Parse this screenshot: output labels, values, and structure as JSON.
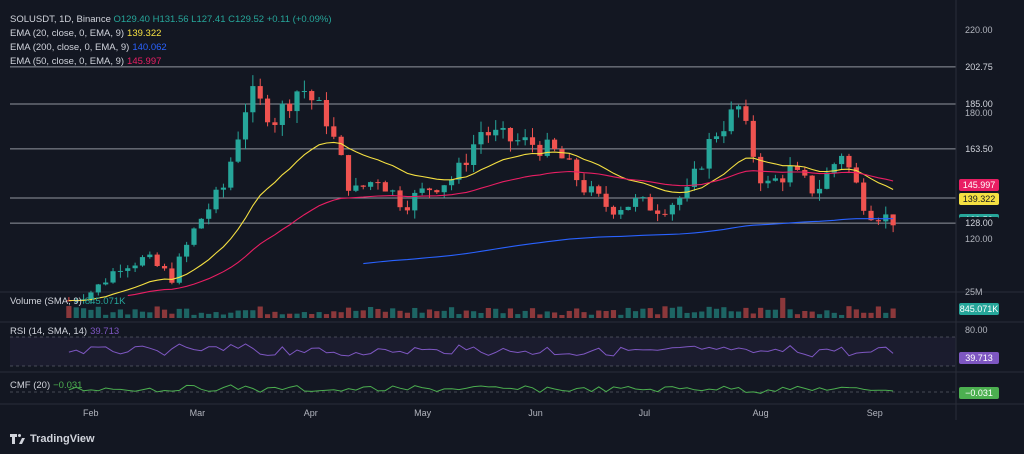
{
  "header": {
    "symbol": "SOLUSDT, 1D, Binance",
    "o": "O129.40",
    "h": "H131.56",
    "l": "L127.41",
    "c": "C129.52",
    "chg": "+0.11 (+0.09%)"
  },
  "indicators": [
    {
      "label": "EMA (20, close, 0, EMA, 9)",
      "value": "139.322",
      "color": "#f5e042"
    },
    {
      "label": "EMA (200, close, 0, EMA, 9)",
      "value": "140.062",
      "color": "#2962ff"
    },
    {
      "label": "EMA (50, close, 0, EMA, 9)",
      "value": "145.997",
      "color": "#e91e63"
    }
  ],
  "volume_legend": {
    "label": "Volume (SMA, 9)",
    "value": "845.071K"
  },
  "rsi_legend": {
    "label": "RSI (14, SMA, 14)",
    "value": "39.713"
  },
  "cmf_legend": {
    "label": "CMF (20)",
    "value": "−0.031"
  },
  "branding": "TradingView",
  "colors": {
    "up": "#26a69a",
    "down": "#ef5350",
    "bg": "#131722",
    "rsi": "#7e57c2",
    "cmf": "#4caf50"
  },
  "chart_data": {
    "type": "candlestick",
    "x_months": [
      "Feb",
      "Mar",
      "Apr",
      "May",
      "Jun",
      "Jul",
      "Aug",
      "Sep"
    ],
    "y_ticks": [
      "220.00",
      "180.00",
      "120.00"
    ],
    "horizontal_levels": [
      202.75,
      185.0,
      163.5,
      140.01,
      128.0
    ],
    "price_tags": [
      {
        "text": "202.75",
        "value": 202.75,
        "bg": "#131722",
        "fg": "#d1d4dc"
      },
      {
        "text": "185.00",
        "value": 185.0,
        "bg": "#131722",
        "fg": "#d1d4dc"
      },
      {
        "text": "163.50",
        "value": 163.5,
        "bg": "#131722",
        "fg": "#d1d4dc"
      },
      {
        "text": "145.997",
        "value": 145.997,
        "bg": "#e91e63",
        "fg": "#ffffff"
      },
      {
        "text": "140.062",
        "value": 140.062,
        "bg": "#2962ff",
        "fg": "#ffffff"
      },
      {
        "text": "140.01",
        "value": 140.01,
        "bg": "#131722",
        "fg": "#d1d4dc"
      },
      {
        "text": "139.322",
        "value": 139.322,
        "bg": "#f5e042",
        "fg": "#131722"
      },
      {
        "text": "129.52",
        "value": 129.52,
        "bg": "#26a69a",
        "fg": "#ffffff"
      },
      {
        "text": "128.00",
        "value": 128.0,
        "bg": "#131722",
        "fg": "#d1d4dc"
      }
    ],
    "volume_tick": "25M",
    "rsi_tick": "80.00",
    "ylim": [
      95,
      230
    ],
    "close_series": [
      {
        "date": "2024-01-26",
        "close": 91
      },
      {
        "date": "2024-02-02",
        "close": 96
      },
      {
        "date": "2024-02-09",
        "close": 108
      },
      {
        "date": "2024-02-16",
        "close": 111
      },
      {
        "date": "2024-02-23",
        "close": 102
      },
      {
        "date": "2024-03-01",
        "close": 128
      },
      {
        "date": "2024-03-08",
        "close": 145
      },
      {
        "date": "2024-03-15",
        "close": 190
      },
      {
        "date": "2024-03-22",
        "close": 178
      },
      {
        "date": "2024-03-29",
        "close": 194
      },
      {
        "date": "2024-04-05",
        "close": 178
      },
      {
        "date": "2024-04-12",
        "close": 142
      },
      {
        "date": "2024-04-19",
        "close": 150
      },
      {
        "date": "2024-04-26",
        "close": 137
      },
      {
        "date": "2024-05-03",
        "close": 145
      },
      {
        "date": "2024-05-10",
        "close": 150
      },
      {
        "date": "2024-05-17",
        "close": 172
      },
      {
        "date": "2024-05-24",
        "close": 168
      },
      {
        "date": "2024-05-31",
        "close": 166
      },
      {
        "date": "2024-06-07",
        "close": 161
      },
      {
        "date": "2024-06-14",
        "close": 145
      },
      {
        "date": "2024-06-21",
        "close": 135
      },
      {
        "date": "2024-06-28",
        "close": 138
      },
      {
        "date": "2024-07-05",
        "close": 135
      },
      {
        "date": "2024-07-12",
        "close": 142
      },
      {
        "date": "2024-07-19",
        "close": 170
      },
      {
        "date": "2024-07-26",
        "close": 183
      },
      {
        "date": "2024-08-02",
        "close": 145
      },
      {
        "date": "2024-08-09",
        "close": 153
      },
      {
        "date": "2024-08-16",
        "close": 143
      },
      {
        "date": "2024-08-23",
        "close": 162
      },
      {
        "date": "2024-08-30",
        "close": 134
      },
      {
        "date": "2024-09-06",
        "close": 129.52
      }
    ]
  }
}
